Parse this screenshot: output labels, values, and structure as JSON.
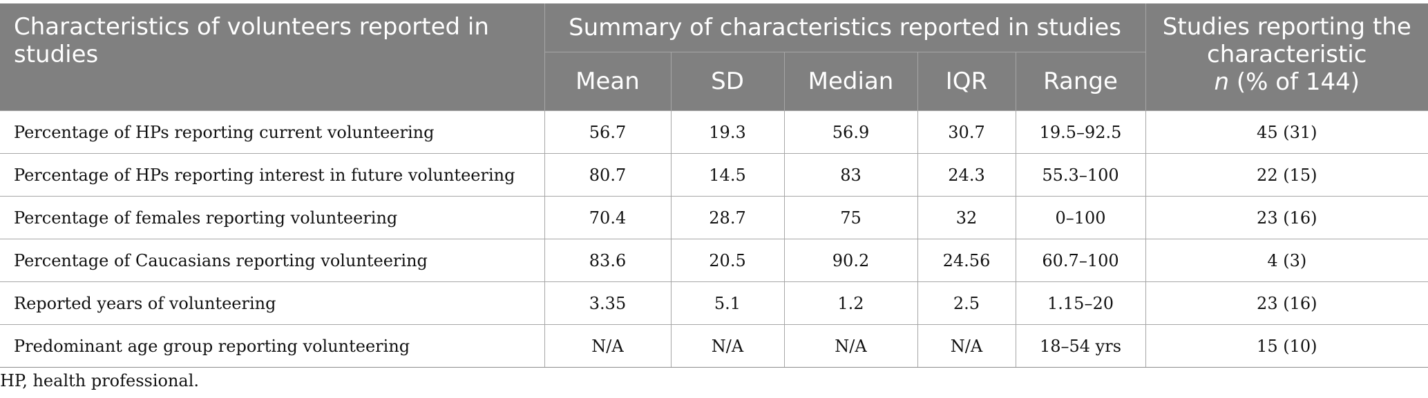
{
  "table": {
    "header": {
      "characteristics": "Characteristics of volunteers reported in studies",
      "summary": "Summary of characteristics reported in studies",
      "sub_columns": [
        "Mean",
        "SD",
        "Median",
        "IQR",
        "Range"
      ],
      "studies_line1": "Studies reporting the characteristic",
      "studies_n": "n",
      "studies_pct": " (% of 144)"
    },
    "rows": [
      {
        "label": "Percentage of HPs reporting current volunteering",
        "mean": "56.7",
        "sd": "19.3",
        "median": "56.9",
        "iqr": "30.7",
        "range": "19.5–92.5",
        "studies": "45 (31)"
      },
      {
        "label": "Percentage of HPs reporting interest in future volunteering",
        "mean": "80.7",
        "sd": "14.5",
        "median": "83",
        "iqr": "24.3",
        "range": "55.3–100",
        "studies": "22 (15)"
      },
      {
        "label": "Percentage of females reporting volunteering",
        "mean": "70.4",
        "sd": "28.7",
        "median": "75",
        "iqr": "32",
        "range": "0–100",
        "studies": "23 (16)"
      },
      {
        "label": "Percentage of Caucasians reporting volunteering",
        "mean": "83.6",
        "sd": "20.5",
        "median": "90.2",
        "iqr": "24.56",
        "range": "60.7–100",
        "studies": "4 (3)"
      },
      {
        "label": "Reported years of volunteering",
        "mean": "3.35",
        "sd": "5.1",
        "median": "1.2",
        "iqr": "2.5",
        "range": "1.15–20",
        "studies": "23 (16)"
      },
      {
        "label": "Predominant age group reporting volunteering",
        "mean": "N/A",
        "sd": "N/A",
        "median": "N/A",
        "iqr": "N/A",
        "range": "18–54 yrs",
        "studies": "15 (10)"
      }
    ]
  },
  "footnote": "HP, health professional."
}
